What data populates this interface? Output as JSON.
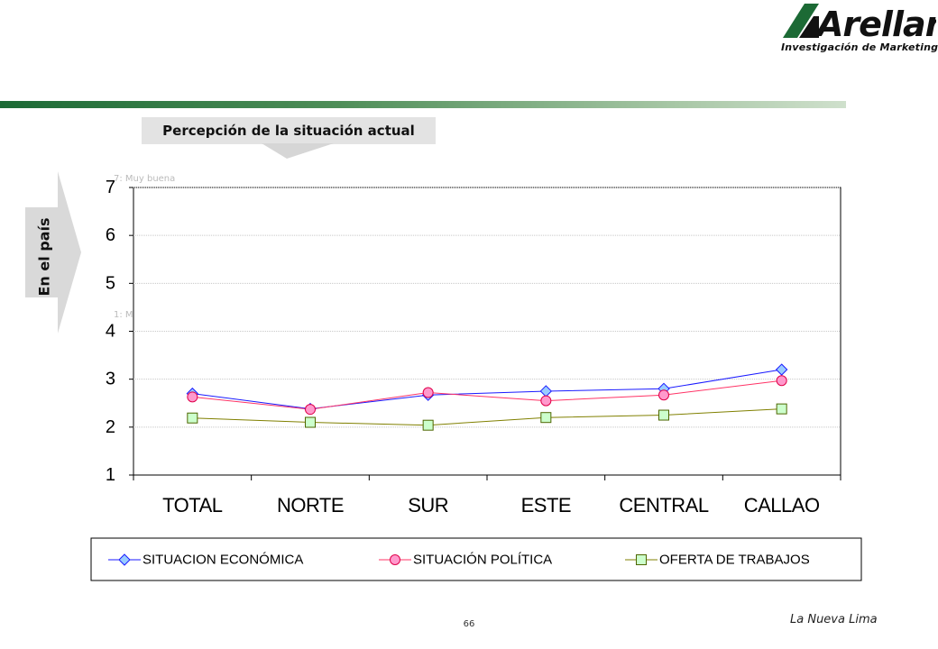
{
  "logo": {
    "name": "Arellano",
    "tagline": "Investigación de Marketing"
  },
  "title": "Percepción de la situación actual",
  "side_label": "En el país",
  "scale_notes": {
    "top": "7: Muy buena",
    "bottom": "1: M"
  },
  "page_number": "66",
  "footer": "La Nueva Lima",
  "colors": {
    "economica": "#1a1aff",
    "politica": "#ff3366",
    "trabajos": "#808000",
    "banner": "#1c6a35"
  },
  "chart_data": {
    "type": "line",
    "categories": [
      "TOTAL",
      "NORTE",
      "SUR",
      "ESTE",
      "CENTRAL",
      "CALLAO"
    ],
    "series": [
      {
        "name": "SITUACION ECONÓMICA",
        "values": [
          2.7,
          2.38,
          2.67,
          2.75,
          2.8,
          3.2
        ]
      },
      {
        "name": "SITUACIÓN POLÍTICA",
        "values": [
          2.63,
          2.37,
          2.72,
          2.55,
          2.67,
          2.97
        ]
      },
      {
        "name": "OFERTA DE TRABAJOS",
        "values": [
          2.19,
          2.1,
          2.04,
          2.2,
          2.25,
          2.38
        ]
      }
    ],
    "ylim": [
      1,
      7
    ],
    "yticks": [
      "1",
      "2",
      "3",
      "4",
      "5",
      "6",
      "7"
    ],
    "grid": true,
    "legend": "bottom"
  }
}
